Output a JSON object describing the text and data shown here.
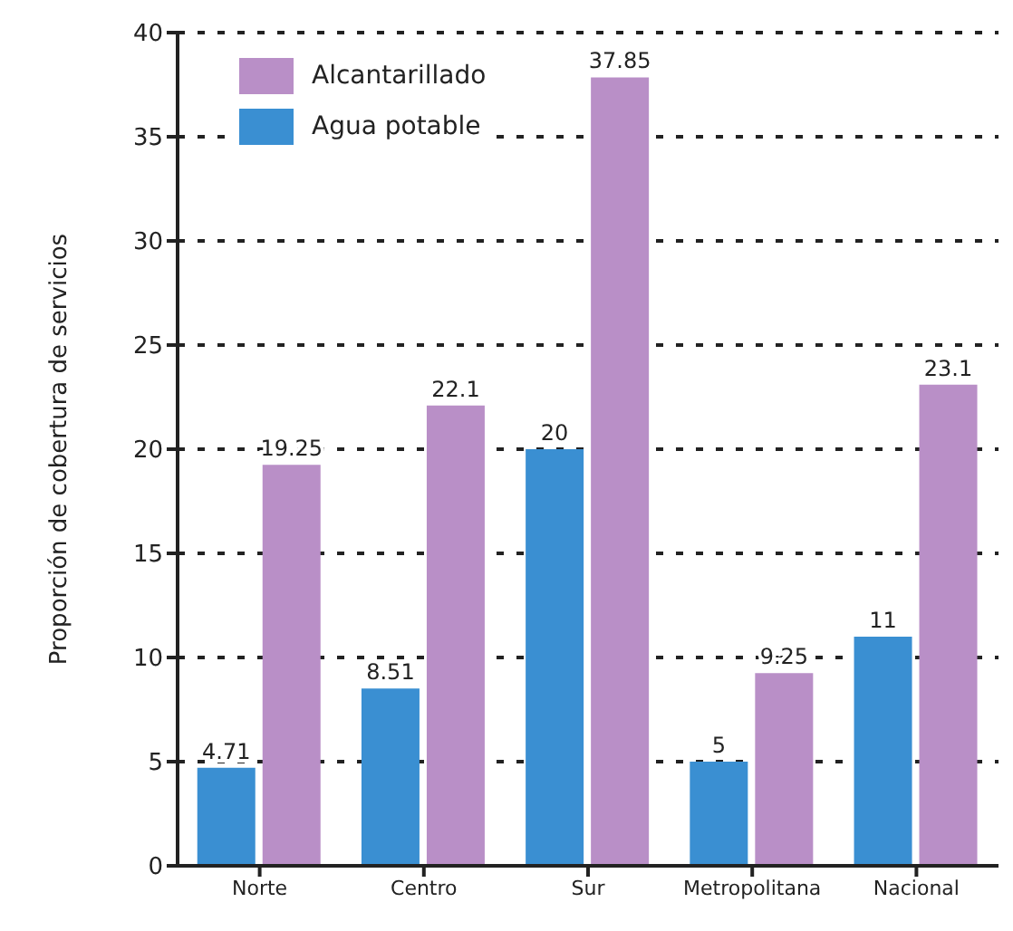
{
  "chart_data": {
    "type": "bar",
    "ylabel": "Proporción de cobertura de servicios",
    "categories": [
      "Norte",
      "Centro",
      "Sur",
      "Metropolitana",
      "Nacional"
    ],
    "series": [
      {
        "name": "Agua potable",
        "color": "#3a8fd2",
        "values": [
          4.71,
          8.51,
          20,
          5,
          11
        ]
      },
      {
        "name": "Alcantarillado",
        "color": "#b98fc7",
        "values": [
          19.25,
          22.1,
          37.85,
          9.25,
          23.1
        ]
      }
    ],
    "ylim": [
      0,
      40
    ],
    "yticks": [
      0,
      5,
      10,
      15,
      20,
      25,
      30,
      35,
      40
    ],
    "grid": "y",
    "legend": "top left",
    "data_labels": true
  }
}
